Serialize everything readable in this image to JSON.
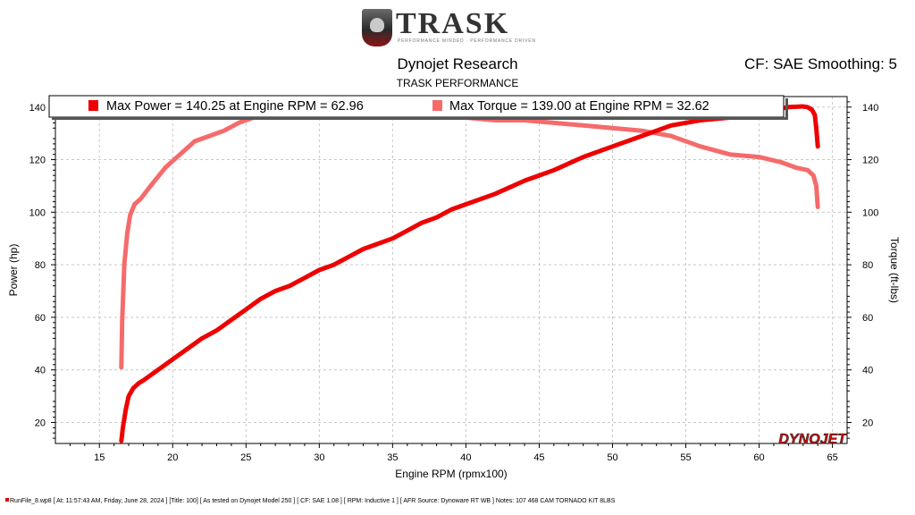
{
  "header": {
    "logo_text": "TRASK",
    "logo_tagline": "PERFORMANCE MINDED · PERFORMANCE DRIVEN",
    "title": "Dynojet Research",
    "subtitle": "TRASK PERFORMANCE",
    "cf_label": "CF: SAE Smoothing: 5"
  },
  "watermark": "DYNOJET",
  "footer": {
    "text": "RunFile_8.wp8 [ At: 11:57:43 AM, Friday, June 28, 2024 ] [Title: 100]  [ As tested on Dynojet Model 250 ] [ CF: SAE 1.08 ] [ RPM: Inductive 1 ] [ AFR Source: Dynoware RT WB ] Notes: 107 468 CAM TORNADO KIT 8LBS"
  },
  "chart_data": {
    "type": "line",
    "title": "Dynojet Research",
    "subtitle": "TRASK PERFORMANCE",
    "xlabel": "Engine RPM (rpmx100)",
    "ylabel_left": "Power (hp)",
    "ylabel_right": "Torque (ft-lbs)",
    "xlim": [
      12,
      66
    ],
    "ylim": [
      12,
      144
    ],
    "x_ticks": [
      15,
      20,
      25,
      30,
      35,
      40,
      45,
      50,
      55,
      60,
      65
    ],
    "y_ticks": [
      20,
      40,
      60,
      80,
      100,
      120,
      140
    ],
    "grid": true,
    "legend_position": "top",
    "legend": [
      {
        "text": "Max Power = 140.25 at Engine RPM = 62.96",
        "color": "#ee0000"
      },
      {
        "text": "Max Torque = 139.00 at Engine RPM = 32.62",
        "color": "#f56b6b"
      }
    ],
    "series": [
      {
        "name": "Power",
        "axis": "left",
        "color": "#ee0000",
        "x": [
          16.5,
          16.6,
          16.8,
          17.0,
          17.3,
          17.7,
          18.0,
          19.0,
          20.0,
          21.0,
          22.0,
          23.0,
          24.0,
          25.0,
          26.0,
          27.0,
          28.0,
          29.0,
          30.0,
          31.0,
          32.0,
          33.0,
          34.0,
          35.0,
          36.0,
          37.0,
          38.0,
          39.0,
          40.0,
          42.0,
          44.0,
          46.0,
          48.0,
          50.0,
          52.0,
          54.0,
          56.0,
          58.0,
          60.0,
          61.0,
          62.0,
          62.96,
          63.3,
          63.6,
          63.8,
          63.9,
          64.0
        ],
        "values": [
          13,
          18,
          25,
          30,
          33,
          35,
          36,
          40,
          44,
          48,
          52,
          55,
          59,
          63,
          67,
          70,
          72,
          75,
          78,
          80,
          83,
          86,
          88,
          90,
          93,
          96,
          98,
          101,
          103,
          107,
          112,
          116,
          121,
          125,
          129,
          133,
          135,
          136,
          138,
          139,
          140,
          140.25,
          140,
          139,
          137,
          132,
          125
        ]
      },
      {
        "name": "Torque",
        "axis": "right",
        "color": "#f56b6b",
        "x": [
          16.5,
          16.55,
          16.7,
          16.9,
          17.1,
          17.4,
          17.8,
          18.5,
          19.5,
          20.5,
          21.5,
          22.5,
          23.5,
          24.5,
          25.5,
          26.5,
          28.0,
          30.0,
          32.62,
          34.0,
          36.0,
          38.0,
          40.0,
          42.0,
          44.0,
          46.0,
          48.0,
          50.0,
          52.0,
          54.0,
          56.0,
          58.0,
          60.0,
          61.5,
          62.5,
          63.3,
          63.7,
          63.9,
          64.0
        ],
        "values": [
          41,
          58,
          80,
          92,
          99,
          103,
          105,
          110,
          117,
          122,
          127,
          129,
          131,
          134,
          136,
          137,
          137,
          138,
          139,
          138,
          138,
          137,
          136,
          135,
          135,
          134,
          133,
          132,
          131,
          129,
          125,
          122,
          121,
          119,
          117,
          116,
          114,
          110,
          102
        ]
      }
    ]
  }
}
